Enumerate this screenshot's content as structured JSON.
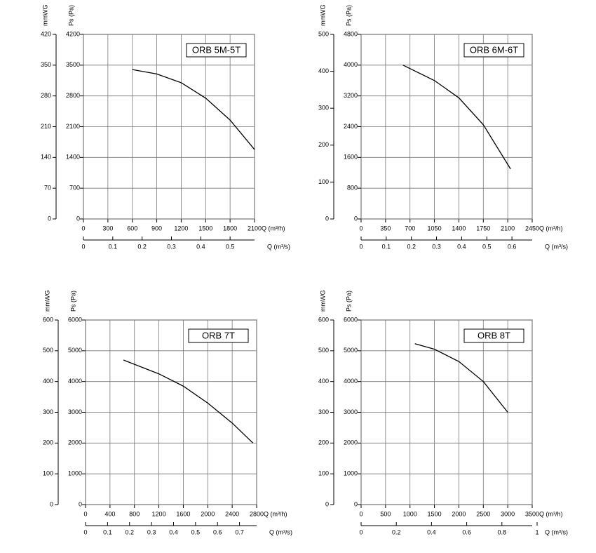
{
  "chart_data": [
    {
      "type": "line",
      "title": "ORB 5M-5T",
      "x_label": "Q (m³/h)",
      "x2_label": "Q (m³/s)",
      "y_label": "Ps (Pa)",
      "y2_label": "mmWG",
      "xlim": [
        0,
        2100
      ],
      "xticks": [
        0,
        300,
        600,
        900,
        1200,
        1500,
        1800,
        2100
      ],
      "x2lim": [
        0,
        0.5833
      ],
      "x2ticks": [
        0,
        0.1,
        0.2,
        0.3,
        0.4,
        0.5
      ],
      "ylim": [
        0,
        4200
      ],
      "yticks": [
        0,
        700,
        1400,
        2100,
        2800,
        3500,
        4200
      ],
      "y2lim": [
        0,
        420
      ],
      "y2ticks": [
        0,
        70,
        140,
        210,
        280,
        350,
        420
      ],
      "grid": true,
      "series": [
        {
          "color": "#000000",
          "x": [
            600,
            900,
            1200,
            1500,
            1800,
            2100
          ],
          "values": [
            3400,
            3300,
            3100,
            2750,
            2250,
            1580
          ]
        }
      ]
    },
    {
      "type": "line",
      "title": "ORB 6M-6T",
      "x_label": "Q (m³/h)",
      "x2_label": "Q (m³/s)",
      "y_label": "Ps (Pa)",
      "y2_label": "mmWG",
      "xlim": [
        0,
        2450
      ],
      "xticks": [
        0,
        350,
        700,
        1050,
        1400,
        1750,
        2100,
        2450
      ],
      "x2lim": [
        0,
        0.6806
      ],
      "x2ticks": [
        0,
        0.1,
        0.2,
        0.3,
        0.4,
        0.5,
        0.6
      ],
      "ylim": [
        0,
        4800
      ],
      "yticks": [
        0,
        800,
        1600,
        2400,
        3200,
        4000,
        4800
      ],
      "y2lim": [
        0,
        500
      ],
      "y2ticks": [
        0,
        100,
        200,
        300,
        400,
        500
      ],
      "grid": true,
      "series": [
        {
          "color": "#000000",
          "x": [
            600,
            1050,
            1400,
            1750,
            2140
          ],
          "values": [
            4000,
            3600,
            3150,
            2450,
            1300
          ]
        }
      ]
    },
    {
      "type": "line",
      "title": "ORB 7T",
      "x_label": "Q (m³/h)",
      "x2_label": "Q (m³/s)",
      "y_label": "Ps (Pa)",
      "y2_label": "mmWG",
      "xlim": [
        0,
        2800
      ],
      "xticks": [
        0,
        400,
        800,
        1200,
        1600,
        2000,
        2400,
        2800
      ],
      "x2lim": [
        0,
        0.7778
      ],
      "x2ticks": [
        0,
        0.1,
        0.2,
        0.3,
        0.4,
        0.5,
        0.6,
        0.7
      ],
      "ylim": [
        0,
        6000
      ],
      "yticks": [
        0,
        1000,
        2000,
        3000,
        4000,
        5000,
        6000
      ],
      "y2lim": [
        0,
        600
      ],
      "y2ticks": [
        0,
        100,
        200,
        300,
        400,
        500,
        600
      ],
      "grid": true,
      "series": [
        {
          "color": "#000000",
          "x": [
            620,
            1200,
            1600,
            2000,
            2400,
            2740
          ],
          "values": [
            4700,
            4250,
            3850,
            3300,
            2650,
            2000
          ]
        }
      ]
    },
    {
      "type": "line",
      "title": "ORB 8T",
      "x_label": "Q (m³/h)",
      "x2_label": "Q (m³/s)",
      "y_label": "Ps (Pa)",
      "y2_label": "mmWG",
      "xlim": [
        0,
        3500
      ],
      "xticks": [
        0,
        500,
        1000,
        1500,
        2000,
        2500,
        3000,
        3500
      ],
      "x2lim": [
        0,
        0.9722
      ],
      "x2ticks": [
        0,
        0.2,
        0.4,
        0.6,
        0.8,
        1.0
      ],
      "ylim": [
        0,
        6000
      ],
      "yticks": [
        0,
        1000,
        2000,
        3000,
        4000,
        5000,
        6000
      ],
      "y2lim": [
        0,
        600
      ],
      "y2ticks": [
        0,
        100,
        200,
        300,
        400,
        500,
        600
      ],
      "grid": true,
      "series": [
        {
          "color": "#000000",
          "x": [
            1100,
            1500,
            2000,
            2500,
            3000
          ],
          "values": [
            5230,
            5050,
            4650,
            4000,
            3000
          ]
        }
      ]
    }
  ]
}
